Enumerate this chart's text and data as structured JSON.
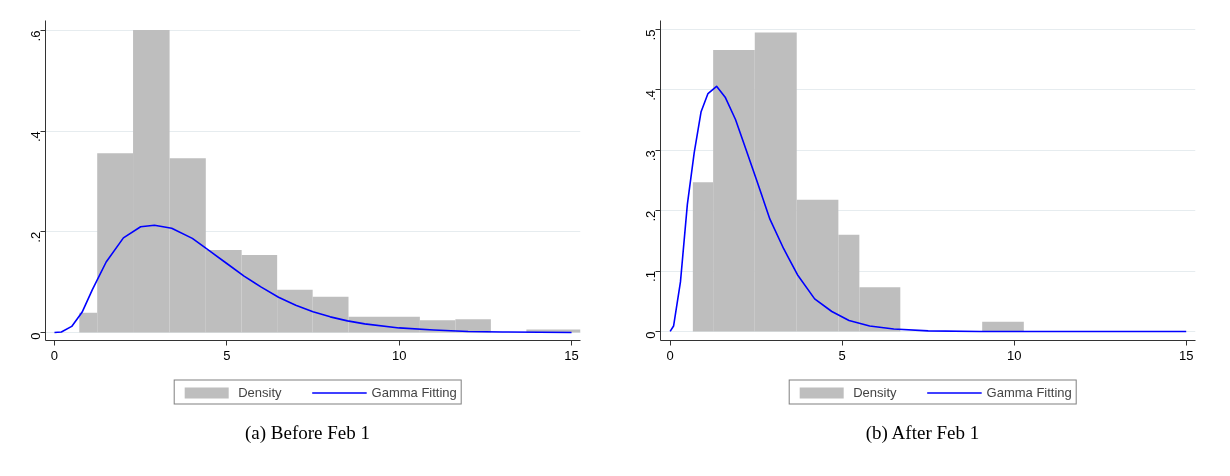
{
  "chart_data": [
    {
      "type": "histogram",
      "xlim": [
        -0.26,
        15.26
      ],
      "ylim": [
        -0.016,
        0.62
      ],
      "xticks": [
        0,
        5,
        10,
        15
      ],
      "yticks": [
        0,
        {
          "value": 0.2,
          "label": ".2"
        },
        {
          "value": 0.4,
          "label": ".4"
        },
        {
          "value": 0.6,
          "label": ".6"
        }
      ],
      "grid": "y",
      "legend": "bottom",
      "annotations": [
        "(a)  Before Feb 1"
      ],
      "series": [
        {
          "name": "Density",
          "type": "histogram",
          "color": "#bebebe",
          "bins": [
            0.72,
            1.24,
            2.28,
            3.34,
            4.39,
            5.43,
            6.46,
            7.49,
            8.53,
            9.56,
            10.6,
            11.63,
            12.66,
            13.69,
            15.26
          ],
          "values": [
            0.039,
            0.356,
            0.601,
            0.346,
            0.164,
            0.154,
            0.085,
            0.071,
            0.031,
            0.031,
            0.024,
            0.026,
            0,
            0.006
          ]
        },
        {
          "name": "Gamma Fitting",
          "type": "line",
          "color": "#0000ff",
          "x": [
            0,
            0.2,
            0.5,
            0.8,
            1.1,
            1.5,
            2,
            2.5,
            2.9,
            3.4,
            4,
            4.5,
            5,
            5.5,
            6,
            6.5,
            7,
            7.5,
            8,
            8.5,
            9,
            10,
            11,
            12,
            13,
            15
          ],
          "values": [
            0,
            0.001,
            0.012,
            0.04,
            0.085,
            0.14,
            0.188,
            0.21,
            0.213,
            0.207,
            0.187,
            0.162,
            0.137,
            0.112,
            0.09,
            0.07,
            0.054,
            0.041,
            0.031,
            0.023,
            0.017,
            0.009,
            0.005,
            0.002,
            0.001,
            0
          ]
        }
      ]
    },
    {
      "type": "histogram",
      "xlim": [
        -0.28,
        15.27
      ],
      "ylim": [
        -0.015,
        0.515
      ],
      "xticks": [
        0,
        5,
        10,
        15
      ],
      "yticks": [
        0,
        {
          "value": 0.1,
          "label": ".1"
        },
        {
          "value": 0.2,
          "label": ".2"
        },
        {
          "value": 0.3,
          "label": ".3"
        },
        {
          "value": 0.4,
          "label": ".4"
        },
        {
          "value": 0.5,
          "label": ".5"
        }
      ],
      "grid": "y",
      "legend": "bottom",
      "annotations": [
        "(b)  After Feb 1"
      ],
      "series": [
        {
          "name": "Density",
          "type": "histogram",
          "color": "#bebebe",
          "bins": [
            0.66,
            1.25,
            2.46,
            3.68,
            4.89,
            5.5,
            6.69,
            9.07,
            10.28
          ],
          "values": [
            0.247,
            0.466,
            0.495,
            0.218,
            0.16,
            0.073,
            0,
            0.016
          ]
        },
        {
          "name": "Gamma Fitting",
          "type": "line",
          "color": "#0000ff",
          "x": [
            0,
            0.1,
            0.3,
            0.5,
            0.7,
            0.9,
            1.1,
            1.35,
            1.6,
            1.9,
            2.2,
            2.5,
            2.9,
            3.3,
            3.7,
            4.2,
            4.7,
            5.2,
            5.8,
            6.5,
            7.5,
            9,
            15
          ],
          "values": [
            0,
            0.009,
            0.082,
            0.21,
            0.296,
            0.364,
            0.394,
            0.406,
            0.388,
            0.351,
            0.302,
            0.253,
            0.186,
            0.137,
            0.094,
            0.054,
            0.033,
            0.018,
            0.009,
            0.004,
            0.001,
            0,
            0
          ]
        }
      ]
    }
  ]
}
